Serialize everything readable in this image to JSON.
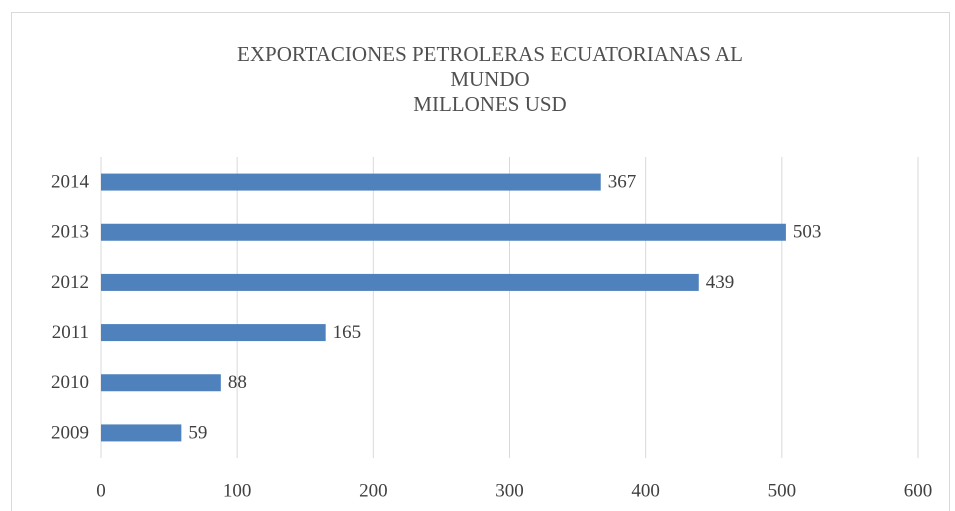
{
  "chart_data": {
    "type": "bar",
    "orientation": "horizontal",
    "title": [
      "EXPORTACIONES PETROLERAS  ECUATORIANAS AL",
      "MUNDO",
      "MILLONES USD"
    ],
    "categories": [
      "2009",
      "2010",
      "2011",
      "2012",
      "2013",
      "2014"
    ],
    "values": [
      59,
      88,
      165,
      439,
      503,
      367
    ],
    "color": "#4f81bd",
    "xlim": [
      0,
      600
    ],
    "xticks": [
      0,
      100,
      200,
      300,
      400,
      500,
      600
    ],
    "grid": true
  }
}
